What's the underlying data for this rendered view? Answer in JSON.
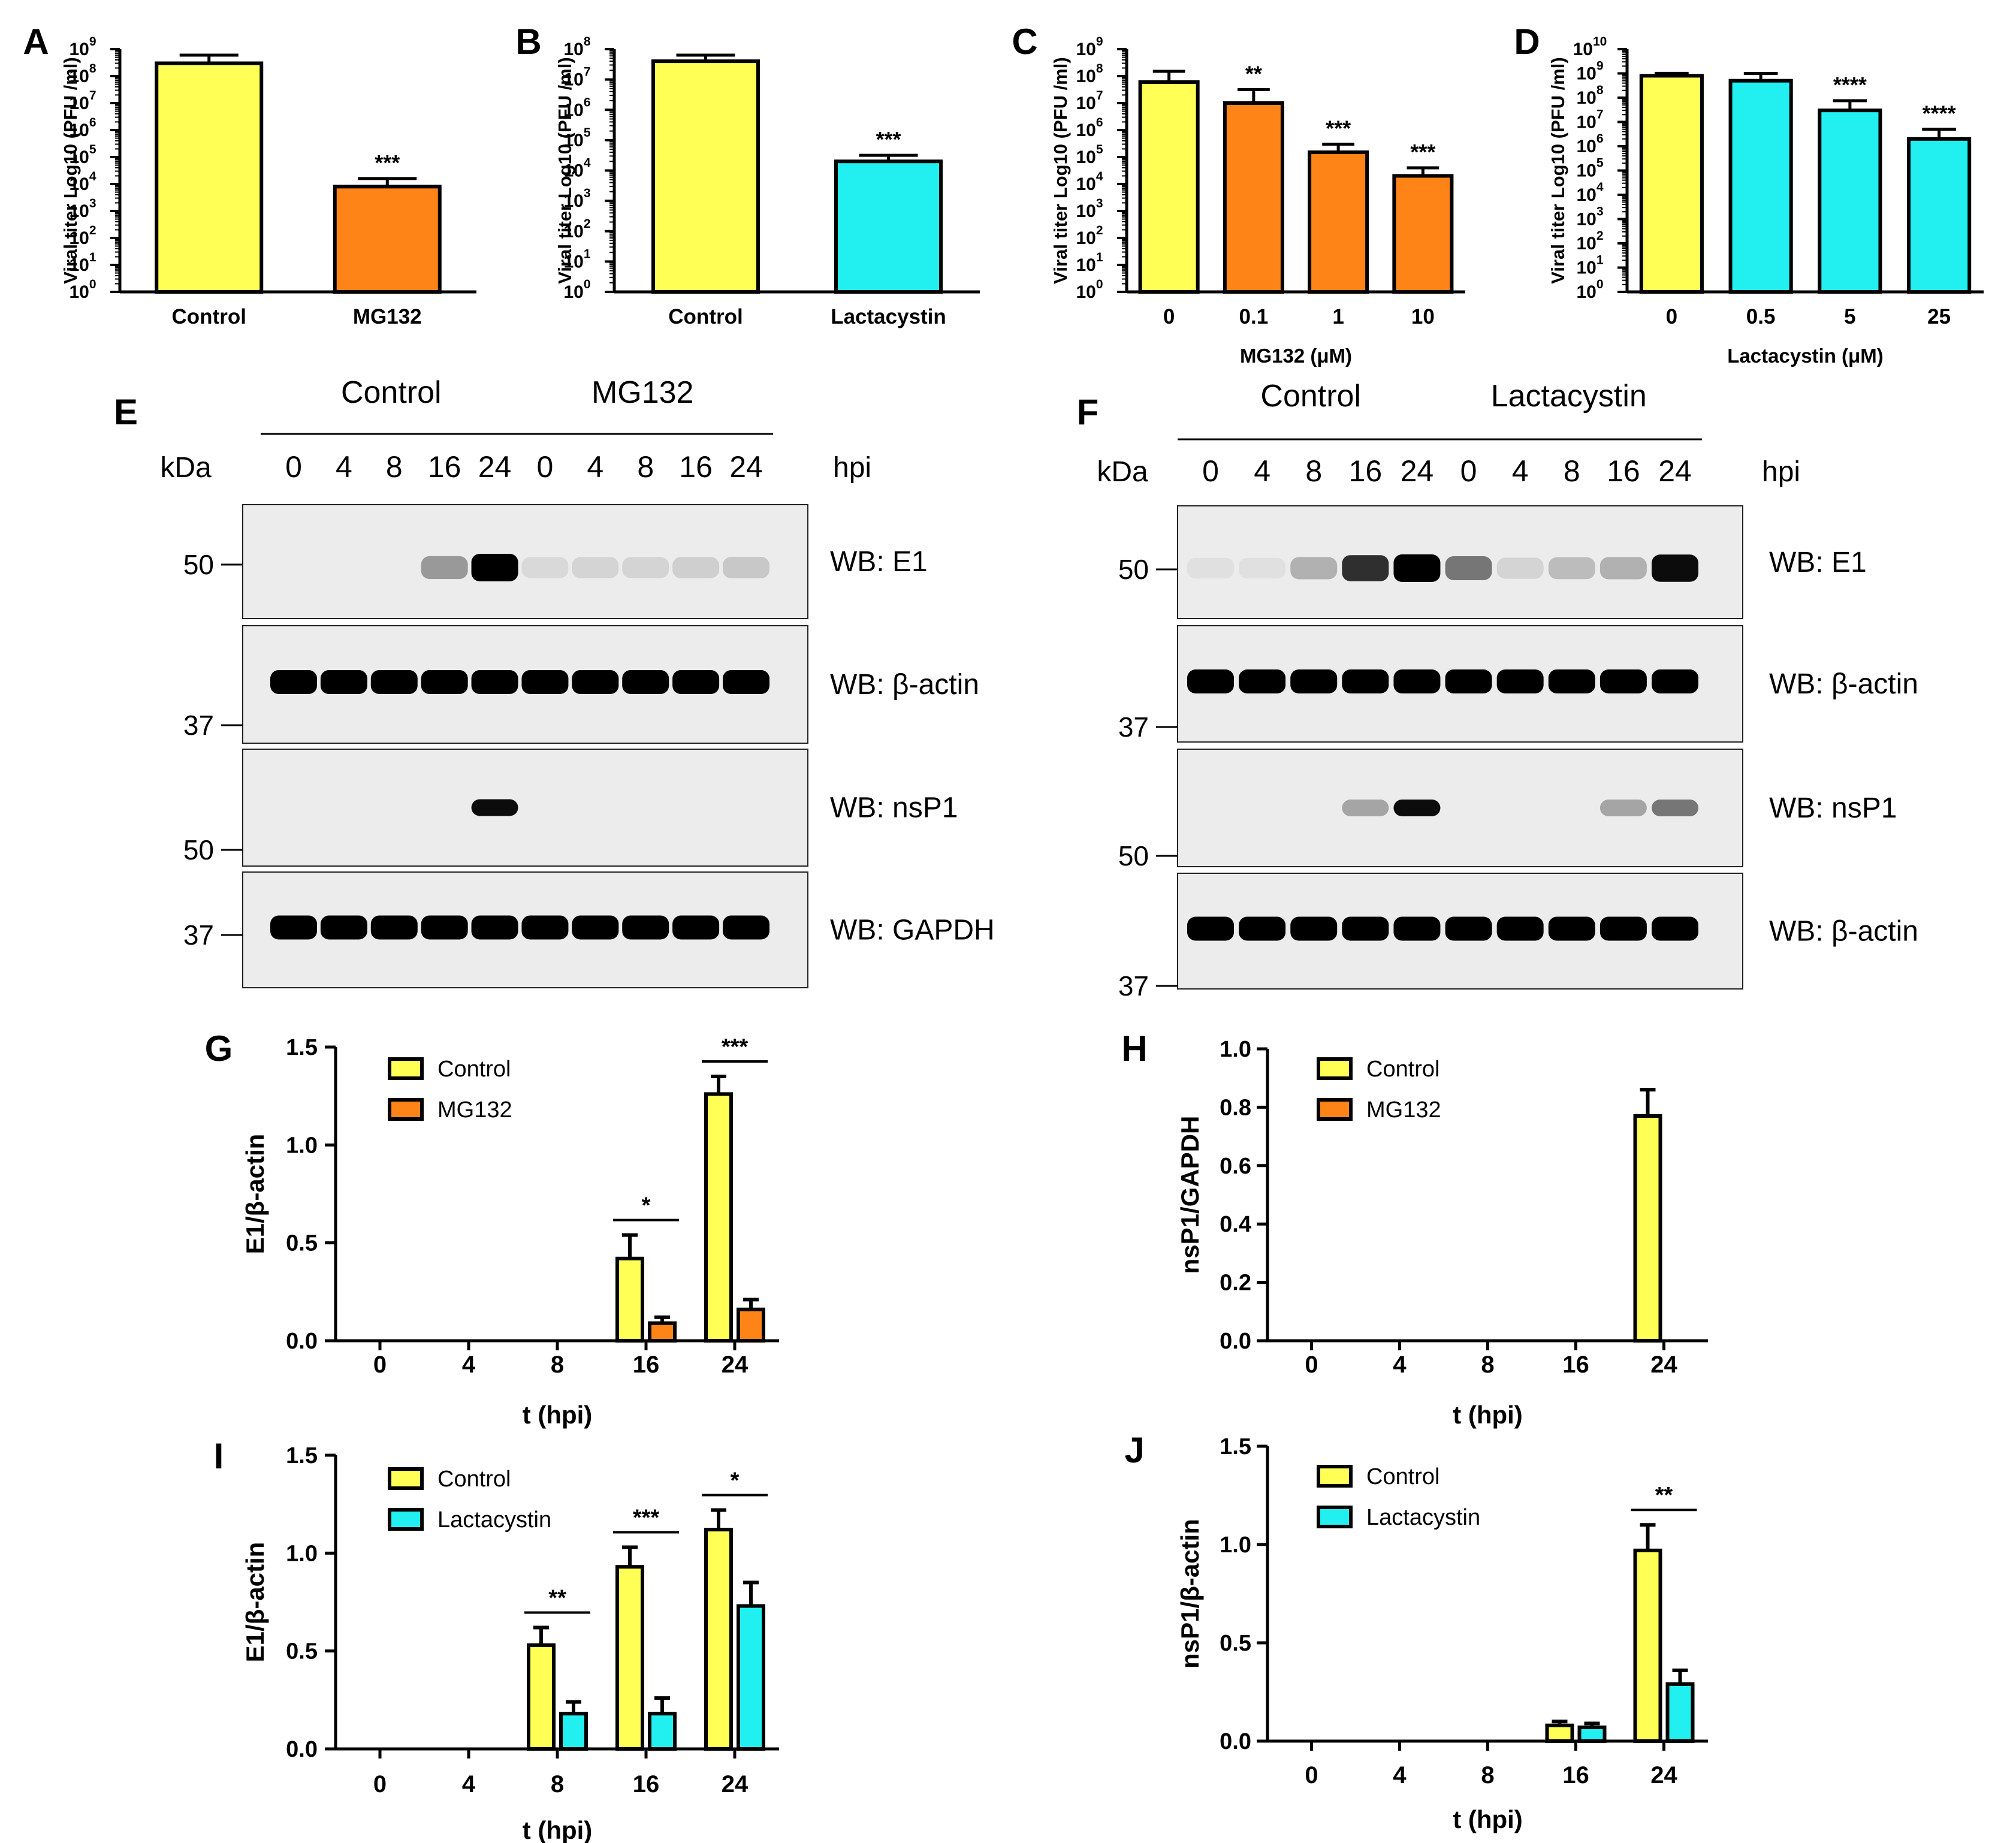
{
  "colors": {
    "control": "#ffff55",
    "mg132": "#ff8418",
    "lactacystin": "#22f0f0",
    "axis": "#000000"
  },
  "chart_data": [
    {
      "id": "A",
      "panel_label": "A",
      "type": "bar",
      "log_scale": true,
      "ylim_exp": [
        0,
        9
      ],
      "ytick_exps": [
        "0",
        "1",
        "2",
        "3",
        "4",
        "5",
        "6",
        "7",
        "8",
        "9"
      ],
      "ylabel": "Viral titer Log10 (PFU /ml)",
      "xlabel": "",
      "categories": [
        "Control",
        "MG132"
      ],
      "series": [
        {
          "name": "Viral titer",
          "values": [
            300000000,
            8000
          ],
          "errors_exp": [
            0.3,
            0.3
          ],
          "color_keys": [
            "control",
            "mg132"
          ]
        }
      ],
      "annotations": [
        {
          "category_index": 1,
          "text": "***"
        }
      ]
    },
    {
      "id": "B",
      "panel_label": "B",
      "type": "bar",
      "log_scale": true,
      "ylim_exp": [
        0,
        8
      ],
      "ytick_exps": [
        "0",
        "1",
        "2",
        "3",
        "4",
        "5",
        "6",
        "7",
        "8"
      ],
      "ylabel": "Viral titer Log10 (PFU /ml)",
      "xlabel": "",
      "categories": [
        "Control",
        "Lactacystin"
      ],
      "series": [
        {
          "name": "Viral titer",
          "values": [
            40000000,
            20000
          ],
          "errors_exp": [
            0.2,
            0.2
          ],
          "color_keys": [
            "control",
            "lactacystin"
          ]
        }
      ],
      "annotations": [
        {
          "category_index": 1,
          "text": "***"
        }
      ]
    },
    {
      "id": "C",
      "panel_label": "C",
      "type": "bar",
      "log_scale": true,
      "ylim_exp": [
        0,
        9
      ],
      "ytick_exps": [
        "0",
        "1",
        "2",
        "3",
        "4",
        "5",
        "6",
        "7",
        "8",
        "9"
      ],
      "ylabel": "Viral titer Log10 (PFU /ml)",
      "xlabel": "MG132 (μM)",
      "categories": [
        "0",
        "0.1",
        "1",
        "10"
      ],
      "series": [
        {
          "name": "Viral titer",
          "values": [
            60000000,
            10000000,
            150000,
            20000
          ],
          "errors_exp": [
            0.4,
            0.5,
            0.3,
            0.3
          ],
          "color_keys": [
            "control",
            "mg132",
            "mg132",
            "mg132"
          ]
        }
      ],
      "annotations": [
        {
          "category_index": 1,
          "text": "**"
        },
        {
          "category_index": 2,
          "text": "***"
        },
        {
          "category_index": 3,
          "text": "***"
        }
      ]
    },
    {
      "id": "D",
      "panel_label": "D",
      "type": "bar",
      "log_scale": true,
      "ylim_exp": [
        0,
        10
      ],
      "ytick_exps": [
        "0",
        "1",
        "2",
        "3",
        "4",
        "5",
        "6",
        "7",
        "8",
        "9",
        "10"
      ],
      "ylabel": "Viral titer Log10 (PFU /ml)",
      "xlabel": "Lactacystin (μM)",
      "categories": [
        "0",
        "0.5",
        "5",
        "25"
      ],
      "series": [
        {
          "name": "Viral titer",
          "values": [
            800000000,
            500000000,
            30000000,
            2000000
          ],
          "errors_exp": [
            0.1,
            0.3,
            0.4,
            0.4
          ],
          "color_keys": [
            "control",
            "lactacystin",
            "lactacystin",
            "lactacystin"
          ]
        }
      ],
      "annotations": [
        {
          "category_index": 2,
          "text": "****"
        },
        {
          "category_index": 3,
          "text": "****"
        }
      ]
    },
    {
      "id": "G",
      "panel_label": "G",
      "type": "bar",
      "log_scale": false,
      "ylim": [
        0,
        1.5
      ],
      "yticks": [
        "0.0",
        "0.5",
        "1.0",
        "1.5"
      ],
      "ylabel": "E1/β-actin",
      "xlabel": "t (hpi)",
      "categories": [
        "0",
        "4",
        "8",
        "16",
        "24"
      ],
      "series": [
        {
          "name": "Control",
          "color_key": "control",
          "values": [
            0,
            0,
            0,
            0.42,
            1.26
          ],
          "errors": [
            0,
            0,
            0,
            0.12,
            0.09
          ]
        },
        {
          "name": "MG132",
          "color_key": "mg132",
          "values": [
            0,
            0,
            0,
            0.09,
            0.16
          ],
          "errors": [
            0,
            0,
            0,
            0.03,
            0.05
          ]
        }
      ],
      "legend": [
        "Control",
        "MG132"
      ],
      "significance": [
        {
          "category_index": 3,
          "text": "*"
        },
        {
          "category_index": 4,
          "text": "***"
        }
      ]
    },
    {
      "id": "H",
      "panel_label": "H",
      "type": "bar",
      "log_scale": false,
      "ylim": [
        0,
        1.0
      ],
      "yticks": [
        "0.0",
        "0.2",
        "0.4",
        "0.6",
        "0.8",
        "1.0"
      ],
      "ylabel": "nsP1/GAPDH",
      "xlabel": "t (hpi)",
      "categories": [
        "0",
        "4",
        "8",
        "16",
        "24"
      ],
      "series": [
        {
          "name": "Control",
          "color_key": "control",
          "values": [
            0,
            0,
            0,
            0,
            0.77
          ],
          "errors": [
            0,
            0,
            0,
            0,
            0.09
          ]
        },
        {
          "name": "MG132",
          "color_key": "mg132",
          "values": [
            0,
            0,
            0,
            0,
            0
          ],
          "errors": [
            0,
            0,
            0,
            0,
            0
          ]
        }
      ],
      "legend": [
        "Control",
        "MG132"
      ],
      "significance": []
    },
    {
      "id": "I",
      "panel_label": "I",
      "type": "bar",
      "log_scale": false,
      "ylim": [
        0,
        1.5
      ],
      "yticks": [
        "0.0",
        "0.5",
        "1.0",
        "1.5"
      ],
      "ylabel": "E1/β-actin",
      "xlabel": "t (hpi)",
      "categories": [
        "0",
        "4",
        "8",
        "16",
        "24"
      ],
      "series": [
        {
          "name": "Control",
          "color_key": "control",
          "values": [
            0,
            0,
            0.53,
            0.93,
            1.12
          ],
          "errors": [
            0,
            0,
            0.09,
            0.1,
            0.1
          ]
        },
        {
          "name": "Lactacystin",
          "color_key": "lactacystin",
          "values": [
            0,
            0,
            0.18,
            0.18,
            0.73
          ],
          "errors": [
            0,
            0,
            0.06,
            0.08,
            0.12
          ]
        }
      ],
      "legend": [
        "Control",
        "Lactacystin"
      ],
      "significance": [
        {
          "category_index": 2,
          "text": "**"
        },
        {
          "category_index": 3,
          "text": "***"
        },
        {
          "category_index": 4,
          "text": "*"
        }
      ]
    },
    {
      "id": "J",
      "panel_label": "J",
      "type": "bar",
      "log_scale": false,
      "ylim": [
        0,
        1.5
      ],
      "yticks": [
        "0.0",
        "0.5",
        "1.0",
        "1.5"
      ],
      "ylabel": "nsP1/β-actin",
      "xlabel": "t (hpi)",
      "categories": [
        "0",
        "4",
        "8",
        "16",
        "24"
      ],
      "series": [
        {
          "name": "Control",
          "color_key": "control",
          "values": [
            0,
            0,
            0,
            0.08,
            0.97
          ],
          "errors": [
            0,
            0,
            0,
            0.02,
            0.13
          ]
        },
        {
          "name": "Lactacystin",
          "color_key": "lactacystin",
          "values": [
            0,
            0,
            0,
            0.07,
            0.29
          ],
          "errors": [
            0,
            0,
            0,
            0.02,
            0.07
          ]
        }
      ],
      "legend": [
        "Control",
        "Lactacystin"
      ],
      "significance": [
        {
          "category_index": 4,
          "text": "**"
        }
      ]
    }
  ],
  "blots": [
    {
      "id": "E",
      "panel_label": "E",
      "groups": [
        "Control",
        "MG132"
      ],
      "lanes": [
        "0",
        "4",
        "8",
        "16",
        "24",
        "0",
        "4",
        "8",
        "16",
        "24"
      ],
      "kda_label": "kDa",
      "hpi_label": "hpi",
      "markers": [
        "50",
        "37",
        "50",
        "37"
      ],
      "strips": [
        {
          "label": "WB: E1",
          "intensities": [
            0,
            0,
            0,
            0.35,
            1.0,
            0.08,
            0.1,
            0.1,
            0.12,
            0.15
          ]
        },
        {
          "label": "WB: β-actin",
          "intensities": [
            1,
            1,
            1,
            1,
            1,
            1,
            1,
            1,
            1,
            1
          ]
        },
        {
          "label": "WB: nsP1",
          "intensities": [
            0,
            0,
            0,
            0,
            0.95,
            0,
            0,
            0,
            0,
            0
          ]
        },
        {
          "label": "WB: GAPDH",
          "intensities": [
            1,
            1,
            1,
            1,
            1,
            1,
            1,
            1,
            1,
            1
          ]
        }
      ]
    },
    {
      "id": "F",
      "panel_label": "F",
      "groups": [
        "Control",
        "Lactacystin"
      ],
      "lanes": [
        "0",
        "4",
        "8",
        "16",
        "24",
        "0",
        "4",
        "8",
        "16",
        "24"
      ],
      "kda_label": "kDa",
      "hpi_label": "hpi",
      "markers": [
        "50",
        "37",
        "50",
        "37"
      ],
      "strips": [
        {
          "label": "WB: E1",
          "intensities": [
            0.05,
            0.05,
            0.25,
            0.8,
            1.0,
            0.5,
            0.1,
            0.2,
            0.25,
            0.95
          ]
        },
        {
          "label": "WB: β-actin",
          "intensities": [
            1,
            1,
            1,
            1,
            1,
            1,
            1,
            1,
            1,
            1
          ]
        },
        {
          "label": "WB: nsP1",
          "intensities": [
            0,
            0,
            0,
            0.3,
            0.95,
            0,
            0,
            0,
            0.3,
            0.5
          ]
        },
        {
          "label": "WB: β-actin",
          "intensities": [
            1,
            1,
            1,
            1,
            1,
            1,
            1,
            1,
            1,
            1
          ]
        }
      ]
    }
  ]
}
